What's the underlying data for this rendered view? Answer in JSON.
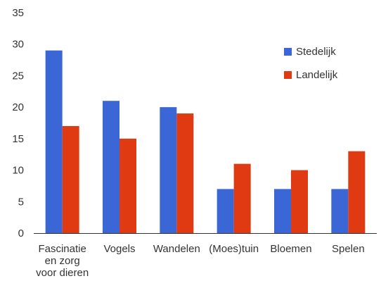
{
  "chart_data": {
    "type": "bar",
    "title": "",
    "xlabel": "",
    "ylabel": "",
    "categories": [
      [
        "Fascinatie",
        "en zorg",
        "voor dieren"
      ],
      [
        "Vogels"
      ],
      [
        "Wandelen"
      ],
      [
        "(Moes)tuin"
      ],
      [
        "Bloemen"
      ],
      [
        "Spelen"
      ]
    ],
    "series": [
      {
        "name": "Stedelijk",
        "color": "#3a67d5",
        "values": [
          29,
          21,
          20,
          7,
          7,
          7
        ]
      },
      {
        "name": "Landelijk",
        "color": "#e03a12",
        "values": [
          17,
          15,
          19,
          11,
          10,
          13
        ]
      }
    ],
    "ylim": [
      0,
      35
    ],
    "yticks": [
      0,
      5,
      10,
      15,
      20,
      25,
      30,
      35
    ],
    "grid": false,
    "legend_position": "top-right"
  }
}
